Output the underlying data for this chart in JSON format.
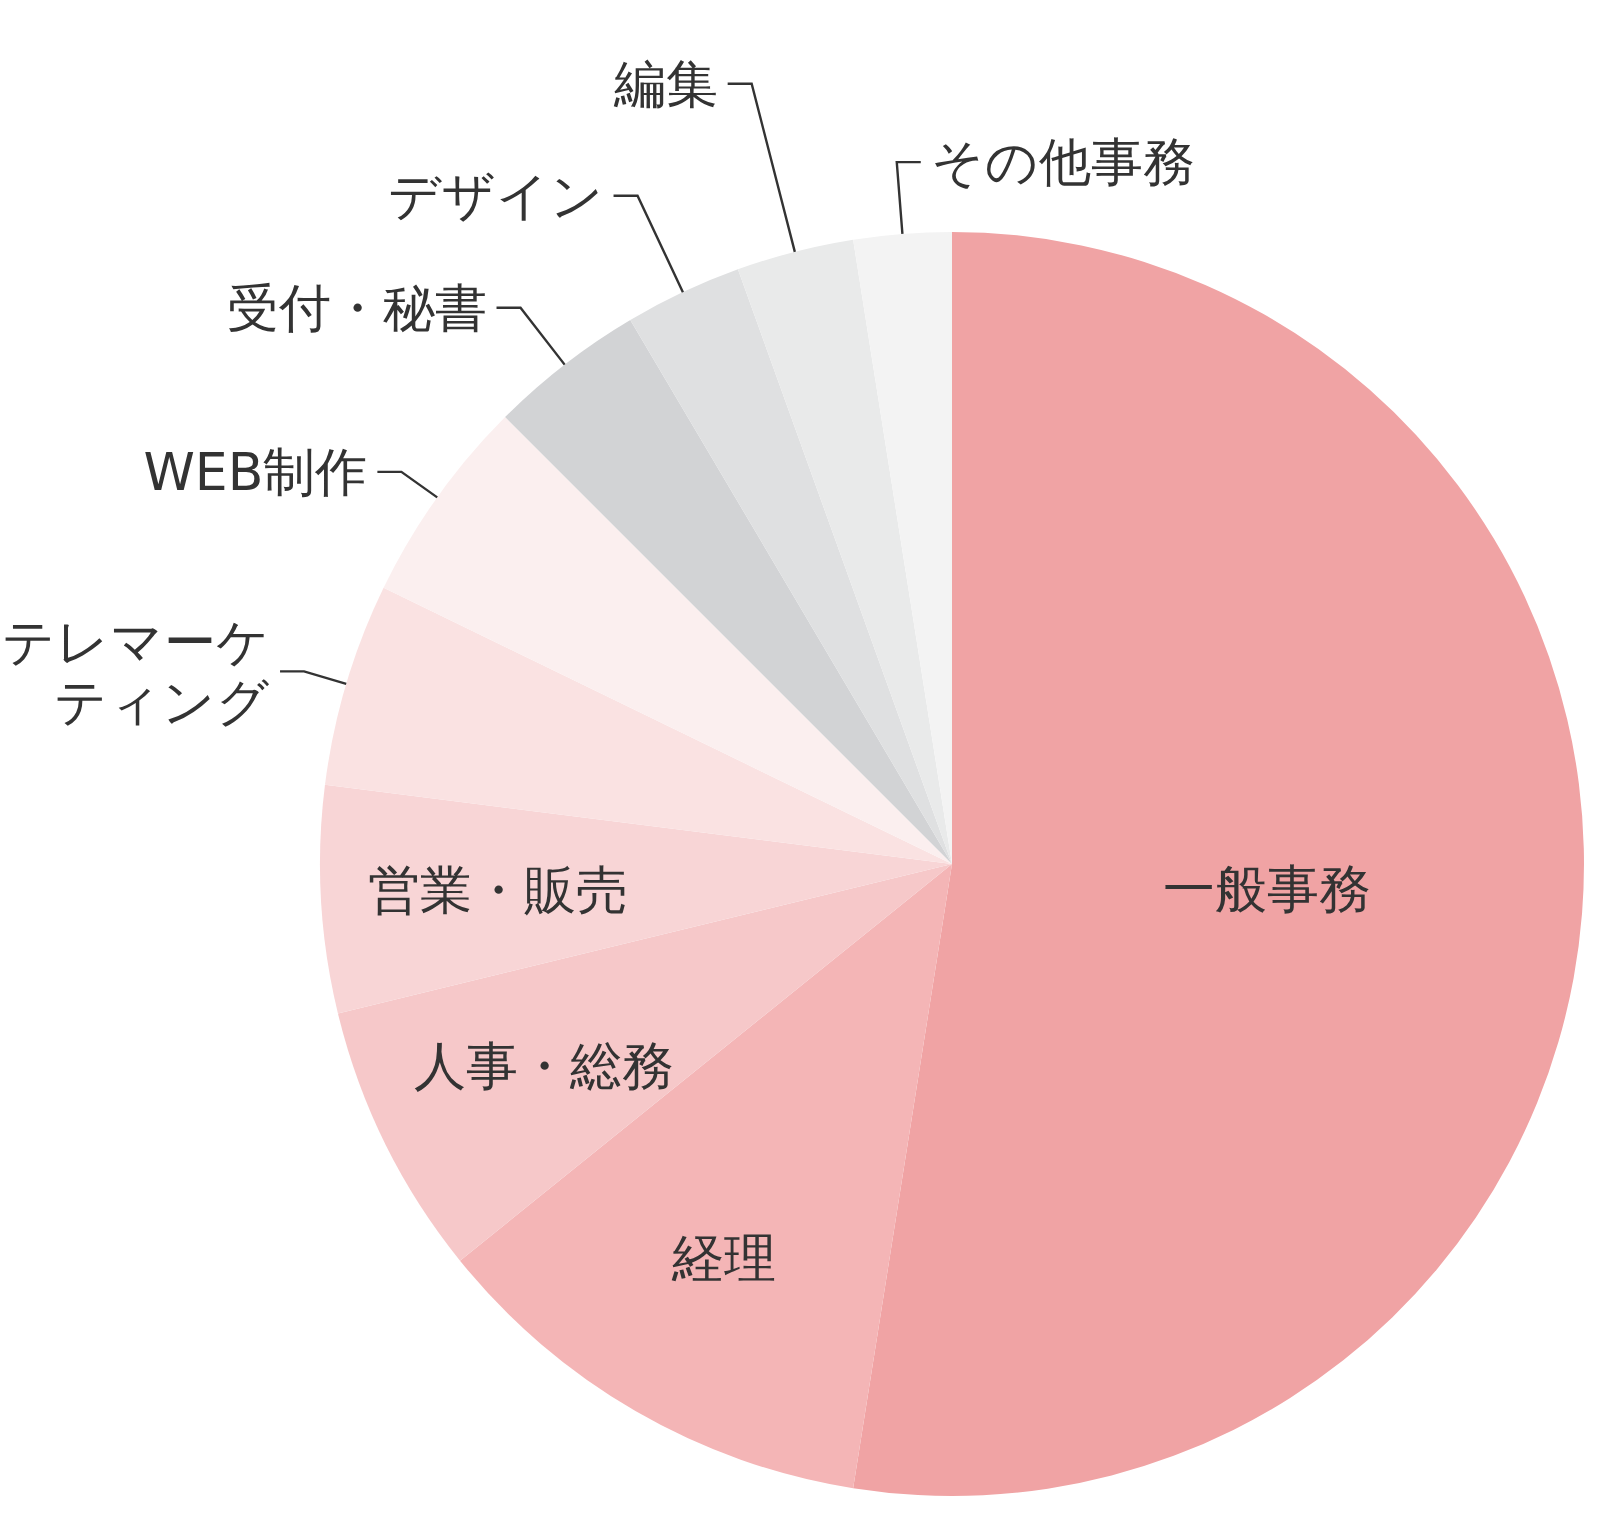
{
  "chart_data": {
    "type": "pie",
    "categories": [
      "一般事務",
      "経理",
      "人事・総務",
      "営業・販売",
      "テレマーケティング",
      "WEB制作",
      "受付・秘書",
      "デザイン",
      "編集",
      "その他事務"
    ],
    "values": [
      52.5,
      11.7,
      7,
      5.8,
      5.2,
      5.3,
      4,
      3,
      3,
      2.5
    ],
    "colors": [
      "#f0a3a4",
      "#f4b5b6",
      "#f6c8c9",
      "#f8d5d6",
      "#fae2e2",
      "#fbefef",
      "#d2d3d5",
      "#dfe0e1",
      "#e9eaea",
      "#f3f3f3"
    ]
  }
}
